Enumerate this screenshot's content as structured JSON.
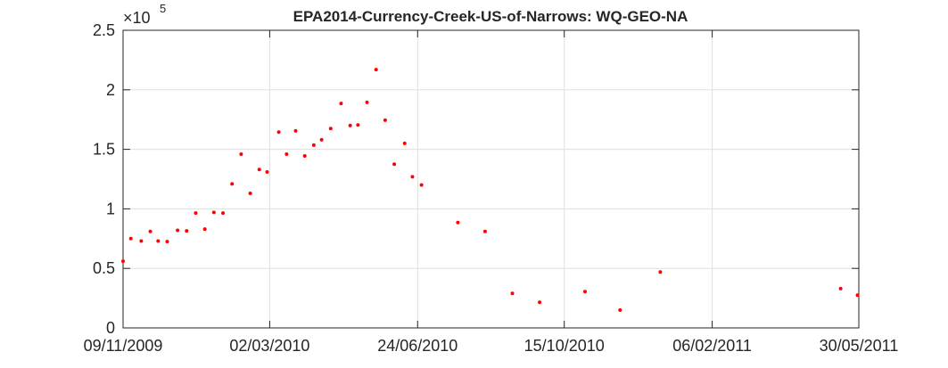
{
  "chart_data": {
    "type": "scatter",
    "title": "EPA2014-Currency-Creek-US-of-Narrows: WQ-GEO-NA",
    "y_multiplier": "×10",
    "y_multiplier_exponent": "5",
    "x": [
      "2009-11-09",
      "2009-11-15",
      "2009-11-23",
      "2009-11-30",
      "2009-12-06",
      "2009-12-13",
      "2009-12-21",
      "2009-12-28",
      "2010-01-04",
      "2010-01-11",
      "2010-01-18",
      "2010-01-25",
      "2010-02-01",
      "2010-02-08",
      "2010-02-15",
      "2010-02-22",
      "2010-02-28",
      "2010-03-09",
      "2010-03-15",
      "2010-03-22",
      "2010-03-29",
      "2010-04-05",
      "2010-04-11",
      "2010-04-18",
      "2010-04-26",
      "2010-05-03",
      "2010-05-09",
      "2010-05-16",
      "2010-05-23",
      "2010-05-30",
      "2010-06-06",
      "2010-06-14",
      "2010-06-20",
      "2010-06-27",
      "2010-07-25",
      "2010-08-15",
      "2010-09-05",
      "2010-09-26",
      "2010-10-31",
      "2010-11-27",
      "2010-12-28",
      "2011-05-16",
      "2011-05-29"
    ],
    "series": [
      {
        "color": "#ff0000",
        "values": [
          56000,
          75000,
          73000,
          81000,
          73000,
          72500,
          82000,
          81500,
          96500,
          83000,
          97000,
          96500,
          121000,
          146000,
          113000,
          133000,
          131000,
          164500,
          146000,
          165500,
          144500,
          153500,
          158000,
          167500,
          188500,
          170000,
          170500,
          189500,
          217000,
          174500,
          137500,
          155000,
          127000,
          120000,
          88500,
          81000,
          29000,
          21500,
          30500,
          15000,
          47000,
          33000,
          27500
        ]
      }
    ],
    "xlim": [
      "2009-11-09",
      "2011-05-30"
    ],
    "xticks": [
      {
        "value": "2009-11-09",
        "label": "09/11/2009"
      },
      {
        "value": "2010-03-02",
        "label": "02/03/2010"
      },
      {
        "value": "2010-06-24",
        "label": "24/06/2010"
      },
      {
        "value": "2010-10-15",
        "label": "15/10/2010"
      },
      {
        "value": "2011-02-06",
        "label": "06/02/2011"
      },
      {
        "value": "2011-05-30",
        "label": "30/05/2011"
      }
    ],
    "ylim": [
      0,
      250000
    ],
    "yticks": [
      0,
      {
        "value": 50000,
        "label": "0.5"
      },
      {
        "value": 100000,
        "label": "1"
      },
      {
        "value": 150000,
        "label": "1.5"
      },
      {
        "value": 200000,
        "label": "2"
      },
      {
        "value": 250000,
        "label": "2.5"
      }
    ],
    "grid": true
  }
}
